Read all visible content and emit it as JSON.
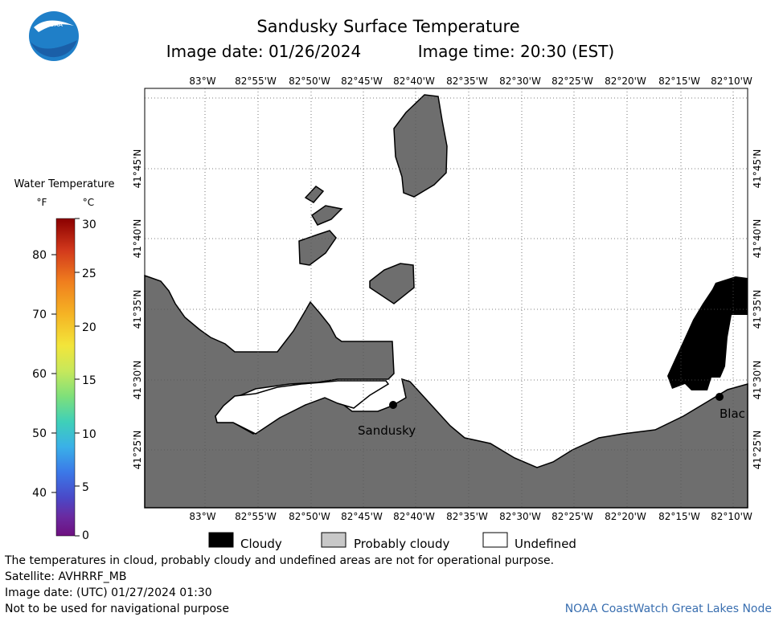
{
  "header": {
    "title": "Sandusky Surface Temperature",
    "image_date": "Image date: 01/26/2024",
    "image_time": "Image time: 20:30 (EST)",
    "logo_text": "NOAA"
  },
  "colorbar": {
    "title": "Water Temperature",
    "unit_f": "°F",
    "unit_c": "°C",
    "f_ticks": [
      "80",
      "70",
      "60",
      "50",
      "40"
    ],
    "c_ticks": [
      "30",
      "25",
      "20",
      "15",
      "10",
      "5",
      "0"
    ],
    "colors": [
      "#8b0000",
      "#d2391c",
      "#f07f1e",
      "#f5b324",
      "#f3e53a",
      "#c7e85b",
      "#7fe07a",
      "#3fd0b8",
      "#3ab0e8",
      "#3b78e8",
      "#4a49c8",
      "#6a2aa0",
      "#6e1080"
    ]
  },
  "map": {
    "lon_labels_top": [
      "83°W",
      "82°55'W",
      "82°50'W",
      "82°45'W",
      "82°40'W",
      "82°35'W",
      "82°30'W",
      "82°25'W",
      "82°20'W",
      "82°15'W",
      "82°10'W"
    ],
    "lon_labels_bottom": [
      "83°W",
      "82°55'W",
      "82°50'W",
      "82°45'W",
      "82°40'W",
      "82°35'W",
      "82°30'W",
      "82°25'W",
      "82°20'W",
      "82°15'W",
      "82°10'W"
    ],
    "lat_labels": [
      "41°45'N",
      "41°40'N",
      "41°35'N",
      "41°30'N",
      "41°25'N"
    ],
    "cities": [
      {
        "name": "Sandusky"
      },
      {
        "name": "Blac"
      }
    ],
    "land_color": "#6e6e6e",
    "cloud_color": "#000000",
    "water_color": "#ffffff"
  },
  "legend": {
    "cloudy": "Cloudy",
    "probably_cloudy": "Probably cloudy",
    "undefined": "Undefined",
    "cloudy_color": "#000000",
    "probably_cloudy_color": "#c8c8c8",
    "undefined_color": "#ffffff"
  },
  "footer": {
    "disclaimer": "The temperatures in cloud, probably cloudy and undefined areas are not for operational purpose.",
    "satellite": "Satellite: AVHRRF_MB",
    "utc_date": "Image date: (UTC) 01/27/2024  01:30",
    "navigation": "Not to be used for navigational purpose",
    "credit": "NOAA CoastWatch Great Lakes Node"
  }
}
